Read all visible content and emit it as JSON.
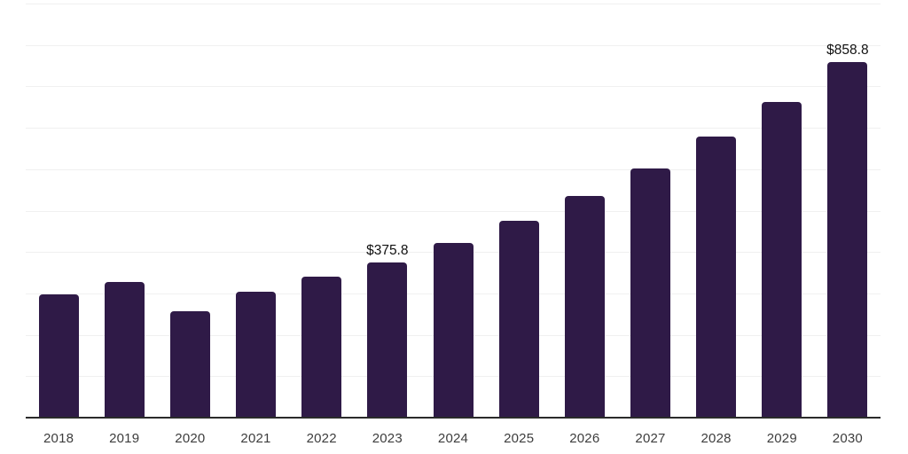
{
  "chart_data": {
    "type": "bar",
    "categories": [
      "2018",
      "2019",
      "2020",
      "2021",
      "2022",
      "2023",
      "2024",
      "2025",
      "2026",
      "2027",
      "2028",
      "2029",
      "2030"
    ],
    "values": [
      297,
      327,
      257,
      305,
      340,
      375.8,
      422.9,
      475.9,
      535.5,
      602.6,
      678.1,
      763.1,
      858.8
    ],
    "data_labels": [
      {
        "index": 5,
        "text": "$375.8"
      },
      {
        "index": 12,
        "text": "$858.8"
      }
    ],
    "title": "",
    "xlabel": "",
    "ylabel": "",
    "ylim": [
      0,
      1000
    ],
    "gridline_step": 100,
    "grid": "horizontal",
    "legend": "none",
    "colors": {
      "bar": "#2f1a47",
      "axis_line": "#2b2b2b",
      "gridline": "#f0f0f0",
      "tick_label": "#3d3d3d",
      "data_label": "#111111",
      "background": "#ffffff"
    }
  }
}
